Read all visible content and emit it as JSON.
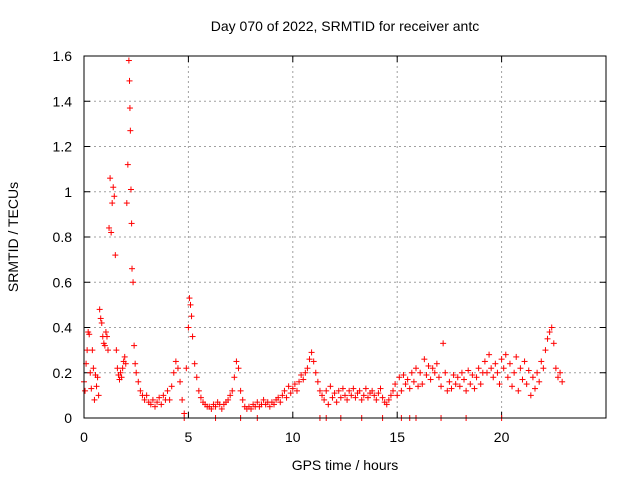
{
  "chart_data": {
    "type": "scatter",
    "title": "Day 070 of 2022, SRMTID for receiver antc",
    "xlabel": "GPS time / hours",
    "ylabel": "SRMTID / TECUs",
    "xlim": [
      0,
      25
    ],
    "ylim": [
      0,
      1.6
    ],
    "xticks": [
      0,
      5,
      10,
      15,
      20
    ],
    "yticks": [
      0,
      0.2,
      0.4,
      0.6,
      0.8,
      1,
      1.2,
      1.4,
      1.6
    ],
    "xtick_labels": [
      "0",
      "5",
      "10",
      "15",
      "20"
    ],
    "ytick_labels": [
      "0",
      "0.2",
      "0.4",
      "0.6",
      "0.8",
      "1",
      "1.2",
      "1.4",
      "1.6"
    ],
    "grid": true,
    "marker": "+",
    "color": "#ff0000",
    "series": [
      {
        "name": "antc",
        "points": [
          [
            0.0,
            0.16
          ],
          [
            0.05,
            0.12
          ],
          [
            0.1,
            0.24
          ],
          [
            0.15,
            0.3
          ],
          [
            0.2,
            0.38
          ],
          [
            0.25,
            0.37
          ],
          [
            0.3,
            0.2
          ],
          [
            0.35,
            0.13
          ],
          [
            0.4,
            0.3
          ],
          [
            0.45,
            0.22
          ],
          [
            0.5,
            0.08
          ],
          [
            0.55,
            0.19
          ],
          [
            0.6,
            0.14
          ],
          [
            0.65,
            0.18
          ],
          [
            0.7,
            0.1
          ],
          [
            0.75,
            0.48
          ],
          [
            0.8,
            0.44
          ],
          [
            0.85,
            0.42
          ],
          [
            0.9,
            0.36
          ],
          [
            0.95,
            0.33
          ],
          [
            1.0,
            0.32
          ],
          [
            1.05,
            0.38
          ],
          [
            1.1,
            0.36
          ],
          [
            1.15,
            0.3
          ],
          [
            1.2,
            0.84
          ],
          [
            1.25,
            1.06
          ],
          [
            1.3,
            0.82
          ],
          [
            1.35,
            0.95
          ],
          [
            1.4,
            1.02
          ],
          [
            1.45,
            0.98
          ],
          [
            1.5,
            0.72
          ],
          [
            1.55,
            0.3
          ],
          [
            1.6,
            0.22
          ],
          [
            1.65,
            0.19
          ],
          [
            1.7,
            0.17
          ],
          [
            1.75,
            0.2
          ],
          [
            1.8,
            0.18
          ],
          [
            1.85,
            0.22
          ],
          [
            1.9,
            0.25
          ],
          [
            1.95,
            0.27
          ],
          [
            2.0,
            0.24
          ],
          [
            2.05,
            0.95
          ],
          [
            2.1,
            1.12
          ],
          [
            2.15,
            1.58
          ],
          [
            2.18,
            1.49
          ],
          [
            2.2,
            1.37
          ],
          [
            2.22,
            1.27
          ],
          [
            2.25,
            1.01
          ],
          [
            2.28,
            0.86
          ],
          [
            2.3,
            0.66
          ],
          [
            2.35,
            0.6
          ],
          [
            2.4,
            0.32
          ],
          [
            2.45,
            0.24
          ],
          [
            2.5,
            0.2
          ],
          [
            2.6,
            0.16
          ],
          [
            2.7,
            0.12
          ],
          [
            2.8,
            0.1
          ],
          [
            2.9,
            0.08
          ],
          [
            3.0,
            0.1
          ],
          [
            3.1,
            0.07
          ],
          [
            3.2,
            0.06
          ],
          [
            3.3,
            0.08
          ],
          [
            3.4,
            0.05
          ],
          [
            3.5,
            0.07
          ],
          [
            3.6,
            0.09
          ],
          [
            3.7,
            0.06
          ],
          [
            3.8,
            0.1
          ],
          [
            3.9,
            0.08
          ],
          [
            4.0,
            0.12
          ],
          [
            4.1,
            0.08
          ],
          [
            4.2,
            0.14
          ],
          [
            4.3,
            0.2
          ],
          [
            4.4,
            0.25
          ],
          [
            4.5,
            0.22
          ],
          [
            4.6,
            0.16
          ],
          [
            4.7,
            0.08
          ],
          [
            4.8,
            0.02
          ],
          [
            4.9,
            0.22
          ],
          [
            5.0,
            0.4
          ],
          [
            5.05,
            0.53
          ],
          [
            5.1,
            0.5
          ],
          [
            5.15,
            0.45
          ],
          [
            5.2,
            0.36
          ],
          [
            5.3,
            0.24
          ],
          [
            5.4,
            0.18
          ],
          [
            5.5,
            0.12
          ],
          [
            5.6,
            0.09
          ],
          [
            5.7,
            0.07
          ],
          [
            5.8,
            0.06
          ],
          [
            5.9,
            0.05
          ],
          [
            6.0,
            0.05
          ],
          [
            6.1,
            0.04
          ],
          [
            6.2,
            0.06
          ],
          [
            6.3,
            0.05
          ],
          [
            6.4,
            0.07
          ],
          [
            6.5,
            0.06
          ],
          [
            6.6,
            0.04
          ],
          [
            6.7,
            0.06
          ],
          [
            6.8,
            0.07
          ],
          [
            6.9,
            0.08
          ],
          [
            7.0,
            0.1
          ],
          [
            7.1,
            0.12
          ],
          [
            7.2,
            0.18
          ],
          [
            7.3,
            0.25
          ],
          [
            7.4,
            0.22
          ],
          [
            7.5,
            0.12
          ],
          [
            7.6,
            0.08
          ],
          [
            7.7,
            0.05
          ],
          [
            7.8,
            0.04
          ],
          [
            7.9,
            0.05
          ],
          [
            8.0,
            0.04
          ],
          [
            8.1,
            0.06
          ],
          [
            8.2,
            0.05
          ],
          [
            8.3,
            0.07
          ],
          [
            8.4,
            0.05
          ],
          [
            8.5,
            0.06
          ],
          [
            8.6,
            0.08
          ],
          [
            8.7,
            0.06
          ],
          [
            8.8,
            0.07
          ],
          [
            8.9,
            0.05
          ],
          [
            9.0,
            0.07
          ],
          [
            9.1,
            0.06
          ],
          [
            9.2,
            0.08
          ],
          [
            9.3,
            0.09
          ],
          [
            9.4,
            0.07
          ],
          [
            9.5,
            0.1
          ],
          [
            9.6,
            0.12
          ],
          [
            9.7,
            0.09
          ],
          [
            9.8,
            0.14
          ],
          [
            9.9,
            0.11
          ],
          [
            10.0,
            0.13
          ],
          [
            10.1,
            0.15
          ],
          [
            10.2,
            0.12
          ],
          [
            10.3,
            0.16
          ],
          [
            10.4,
            0.19
          ],
          [
            10.5,
            0.17
          ],
          [
            10.6,
            0.2
          ],
          [
            10.7,
            0.22
          ],
          [
            10.8,
            0.26
          ],
          [
            10.9,
            0.29
          ],
          [
            11.0,
            0.25
          ],
          [
            11.1,
            0.2
          ],
          [
            11.2,
            0.16
          ],
          [
            11.3,
            0.12
          ],
          [
            11.4,
            0.1
          ],
          [
            11.5,
            0.08
          ],
          [
            11.6,
            0.12
          ],
          [
            11.7,
            0.06
          ],
          [
            11.8,
            0.14
          ],
          [
            11.9,
            0.09
          ],
          [
            12.0,
            0.11
          ],
          [
            12.1,
            0.07
          ],
          [
            12.2,
            0.12
          ],
          [
            12.3,
            0.09
          ],
          [
            12.4,
            0.13
          ],
          [
            12.5,
            0.1
          ],
          [
            12.6,
            0.08
          ],
          [
            12.7,
            0.12
          ],
          [
            12.8,
            0.1
          ],
          [
            12.9,
            0.13
          ],
          [
            13.0,
            0.09
          ],
          [
            13.1,
            0.11
          ],
          [
            13.2,
            0.12
          ],
          [
            13.3,
            0.08
          ],
          [
            13.4,
            0.1
          ],
          [
            13.5,
            0.13
          ],
          [
            13.6,
            0.09
          ],
          [
            13.7,
            0.11
          ],
          [
            13.8,
            0.12
          ],
          [
            13.9,
            0.1
          ],
          [
            14.0,
            0.08
          ],
          [
            14.1,
            0.11
          ],
          [
            14.2,
            0.13
          ],
          [
            14.3,
            0.09
          ],
          [
            14.4,
            0.07
          ],
          [
            14.5,
            0.06
          ],
          [
            14.6,
            0.08
          ],
          [
            14.7,
            0.1
          ],
          [
            14.8,
            0.12
          ],
          [
            14.9,
            0.15
          ],
          [
            15.0,
            0.1
          ],
          [
            15.1,
            0.18
          ],
          [
            15.2,
            0.12
          ],
          [
            15.3,
            0.19
          ],
          [
            15.4,
            0.15
          ],
          [
            15.5,
            0.17
          ],
          [
            15.6,
            0.13
          ],
          [
            15.7,
            0.2
          ],
          [
            15.8,
            0.16
          ],
          [
            15.9,
            0.22
          ],
          [
            16.0,
            0.14
          ],
          [
            16.1,
            0.2
          ],
          [
            16.2,
            0.15
          ],
          [
            16.3,
            0.26
          ],
          [
            16.4,
            0.19
          ],
          [
            16.5,
            0.23
          ],
          [
            16.6,
            0.17
          ],
          [
            16.7,
            0.22
          ],
          [
            16.8,
            0.2
          ],
          [
            16.9,
            0.24
          ],
          [
            17.0,
            0.18
          ],
          [
            17.1,
            0.14
          ],
          [
            17.2,
            0.33
          ],
          [
            17.3,
            0.2
          ],
          [
            17.4,
            0.12
          ],
          [
            17.5,
            0.16
          ],
          [
            17.6,
            0.13
          ],
          [
            17.7,
            0.19
          ],
          [
            17.8,
            0.15
          ],
          [
            17.9,
            0.18
          ],
          [
            18.0,
            0.14
          ],
          [
            18.1,
            0.2
          ],
          [
            18.2,
            0.17
          ],
          [
            18.3,
            0.12
          ],
          [
            18.4,
            0.21
          ],
          [
            18.5,
            0.15
          ],
          [
            18.6,
            0.19
          ],
          [
            18.7,
            0.13
          ],
          [
            18.8,
            0.18
          ],
          [
            18.9,
            0.22
          ],
          [
            19.0,
            0.15
          ],
          [
            19.1,
            0.2
          ],
          [
            19.2,
            0.25
          ],
          [
            19.3,
            0.2
          ],
          [
            19.4,
            0.28
          ],
          [
            19.5,
            0.22
          ],
          [
            19.6,
            0.18
          ],
          [
            19.7,
            0.24
          ],
          [
            19.8,
            0.2
          ],
          [
            19.9,
            0.15
          ],
          [
            20.0,
            0.26
          ],
          [
            20.1,
            0.22
          ],
          [
            20.2,
            0.28
          ],
          [
            20.3,
            0.18
          ],
          [
            20.4,
            0.24
          ],
          [
            20.5,
            0.14
          ],
          [
            20.6,
            0.2
          ],
          [
            20.7,
            0.27
          ],
          [
            20.8,
            0.12
          ],
          [
            20.9,
            0.22
          ],
          [
            21.0,
            0.17
          ],
          [
            21.1,
            0.25
          ],
          [
            21.2,
            0.15
          ],
          [
            21.3,
            0.21
          ],
          [
            21.4,
            0.1
          ],
          [
            21.5,
            0.18
          ],
          [
            21.6,
            0.13
          ],
          [
            21.7,
            0.2
          ],
          [
            21.8,
            0.16
          ],
          [
            21.9,
            0.25
          ],
          [
            22.0,
            0.22
          ],
          [
            22.1,
            0.3
          ],
          [
            22.2,
            0.35
          ],
          [
            22.3,
            0.38
          ],
          [
            22.4,
            0.4
          ],
          [
            22.5,
            0.33
          ],
          [
            22.6,
            0.22
          ],
          [
            22.7,
            0.18
          ],
          [
            22.8,
            0.2
          ],
          [
            22.9,
            0.16
          ]
        ]
      }
    ],
    "baseline_markers": [
      4.8,
      6.3,
      7.5,
      8.3,
      11.3,
      11.6,
      12.3,
      13.3,
      14.3,
      15.2,
      15.6,
      15.9,
      17.1,
      18.3,
      20.0
    ]
  }
}
